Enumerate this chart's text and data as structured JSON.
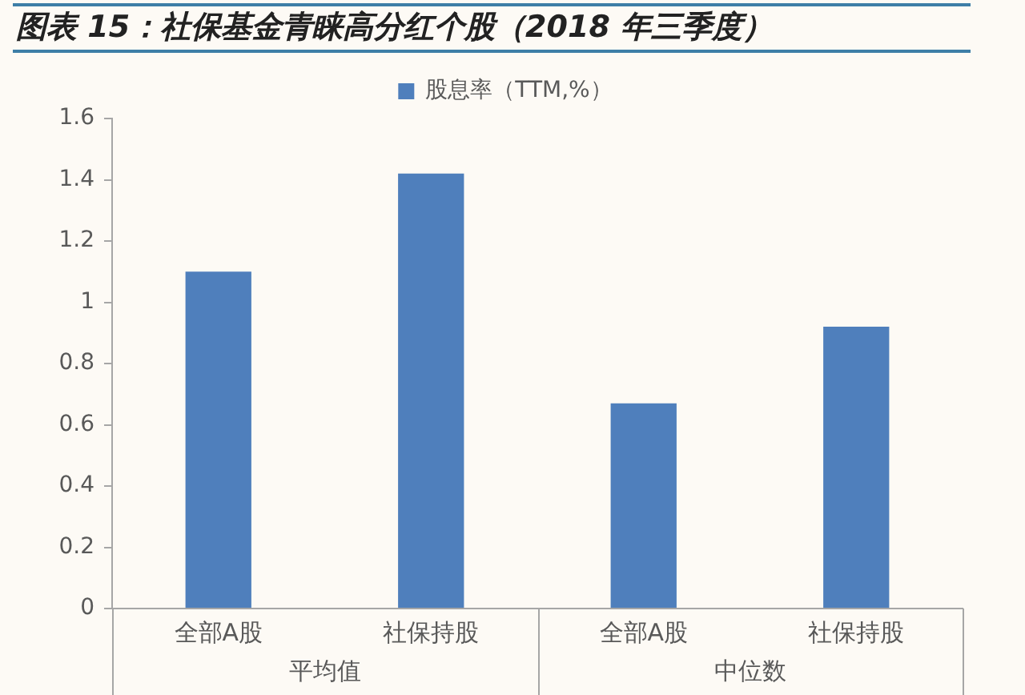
{
  "chart_data": {
    "type": "bar",
    "title": "图表 15：社保基金青睐高分红个股（2018 年三季度）",
    "categories": [
      "全部A股",
      "社保持股",
      "全部A股",
      "社保持股"
    ],
    "series": [
      {
        "name": "股息率（TTM,%）",
        "color": "#4f7fbc",
        "values": [
          1.1,
          1.42,
          0.67,
          0.92
        ]
      }
    ],
    "ylim": [
      0,
      1.6
    ],
    "yticks": [
      0,
      0.2,
      0.4,
      0.6,
      0.8,
      1,
      1.2,
      1.4,
      1.6
    ],
    "grid": false,
    "legend": "top",
    "annotations": [
      "平均值",
      "中位数"
    ]
  }
}
